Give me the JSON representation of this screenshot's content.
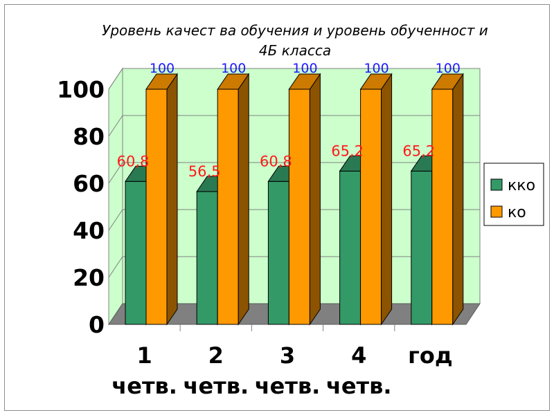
{
  "chart_data": {
    "type": "bar",
    "title_line1": "Уровень качест ва обучения и уровень обученност и",
    "title_line2": "4Б класса",
    "categories": [
      {
        "line1": "1",
        "line2": "четв."
      },
      {
        "line1": "2",
        "line2": "четв."
      },
      {
        "line1": "3",
        "line2": "четв."
      },
      {
        "line1": "4",
        "line2": "четв."
      },
      {
        "line1": "год",
        "line2": ""
      }
    ],
    "series": [
      {
        "name": "кко",
        "values": [
          60.8,
          56.5,
          60.8,
          65.2,
          65.2
        ],
        "labels": [
          "60,8",
          "56,5",
          "60,8",
          "65,2",
          "65,2"
        ],
        "color": "#339966"
      },
      {
        "name": "ко",
        "values": [
          100,
          100,
          100,
          100,
          100
        ],
        "labels": [
          "100",
          "100",
          "100",
          "100",
          "100"
        ],
        "color": "#ff9900"
      }
    ],
    "ylim": [
      0,
      100
    ],
    "yticks": [
      "0",
      "20",
      "40",
      "60",
      "80",
      "100"
    ],
    "xlabel": "",
    "ylabel": "",
    "grid": true,
    "legend_position": "right",
    "wall_color": "#ccffcc",
    "floor_color": "#808080"
  }
}
